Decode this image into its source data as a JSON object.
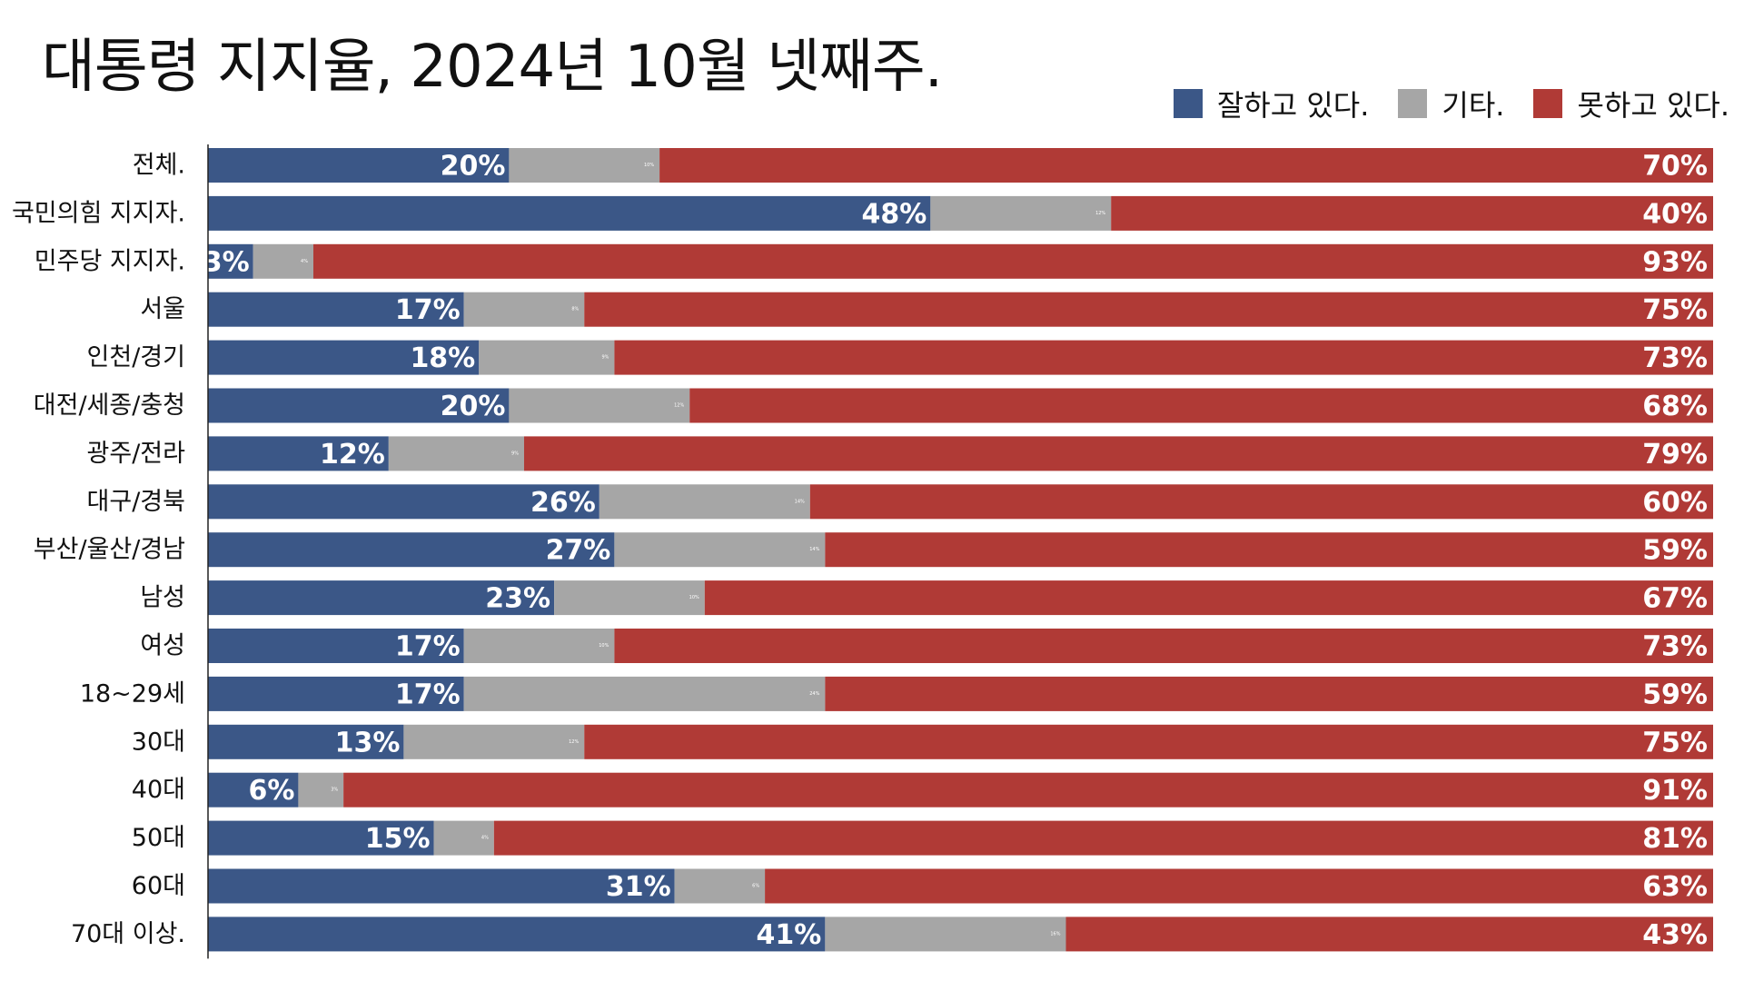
{
  "chart_data": {
    "type": "bar",
    "orientation": "horizontal",
    "stacked": true,
    "percent_suffix": "%",
    "title": "대통령 지지율, 2024년 10월 넷째주.",
    "xlim": [
      0,
      100
    ],
    "legend_position": "top-right",
    "categories": [
      "전체.",
      "국민의힘 지지자.",
      "민주당 지지자.",
      "서울",
      "인천/경기",
      "대전/세종/충청",
      "광주/전라",
      "대구/경북",
      "부산/울산/경남",
      "남성",
      "여성",
      "18~29세",
      "30대",
      "40대",
      "50대",
      "60대",
      "70대 이상."
    ],
    "series": [
      {
        "name": "잘하고 있다.",
        "color": "#3b5787",
        "values": [
          20,
          48,
          3,
          17,
          18,
          20,
          12,
          26,
          27,
          23,
          17,
          17,
          13,
          6,
          15,
          31,
          41
        ]
      },
      {
        "name": "기타.",
        "color": "#a6a6a6",
        "values": [
          10,
          12,
          4,
          8,
          9,
          12,
          9,
          14,
          14,
          10,
          10,
          24,
          12,
          3,
          4,
          6,
          16
        ]
      },
      {
        "name": "못하고 있다.",
        "color": "#b03a36",
        "values": [
          70,
          40,
          93,
          75,
          73,
          68,
          79,
          60,
          59,
          67,
          73,
          59,
          75,
          91,
          81,
          63,
          43
        ]
      }
    ]
  }
}
